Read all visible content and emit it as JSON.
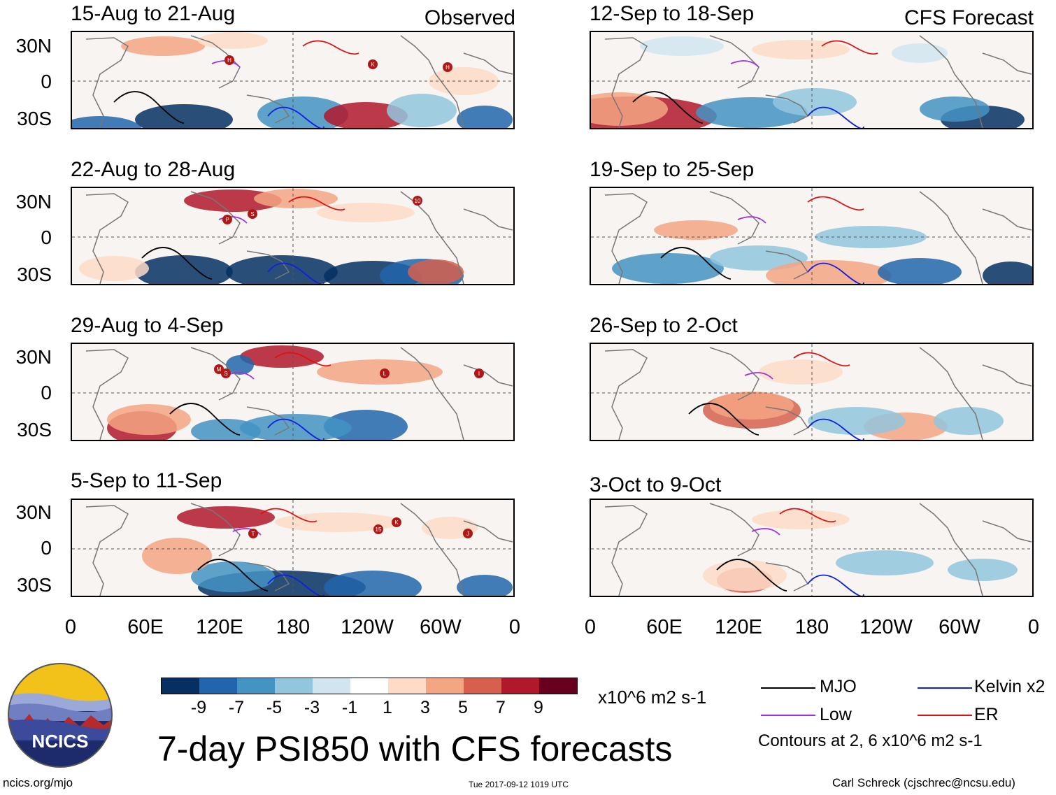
{
  "header": {
    "observed_label": "Observed",
    "forecast_label": "CFS Forecast"
  },
  "panels": {
    "observed": [
      {
        "title": "15-Aug to 21-Aug"
      },
      {
        "title": "22-Aug to 28-Aug"
      },
      {
        "title": "29-Aug to 4-Sep"
      },
      {
        "title": "5-Sep to 11-Sep"
      }
    ],
    "forecast": [
      {
        "title": "12-Sep to 18-Sep"
      },
      {
        "title": "19-Sep to 25-Sep"
      },
      {
        "title": "26-Sep to 2-Oct"
      },
      {
        "title": "3-Oct to 9-Oct"
      }
    ]
  },
  "axes": {
    "lat_labels": [
      "30N",
      "0",
      "30S"
    ],
    "lon_labels": [
      "0",
      "60E",
      "120E",
      "180",
      "120W",
      "60W",
      "0"
    ]
  },
  "colorbar": {
    "colors": [
      "#053061",
      "#2166ac",
      "#4393c3",
      "#92c5de",
      "#d1e5f0",
      "#ffffff",
      "#fddbc7",
      "#f4a582",
      "#d6604d",
      "#b2182b",
      "#67001f"
    ],
    "tick_labels": [
      "-9",
      "-7",
      "-5",
      "-3",
      "-1",
      "1",
      "3",
      "5",
      "7",
      "9"
    ],
    "units": "x10^6 m2 s-1"
  },
  "legend": {
    "items": [
      {
        "label": "MJO",
        "color": "#000000"
      },
      {
        "label": "Kelvin x2",
        "color": "#1020e0"
      },
      {
        "label": "Low",
        "color": "#a030e0"
      },
      {
        "label": "ER",
        "color": "#e01010"
      }
    ],
    "contour_note": "Contours at 2, 6 x10^6 m2 s-1"
  },
  "title": "7-day PSI850 with CFS forecasts",
  "logo_text": "NCICS",
  "footer": {
    "url": "ncics.org/mjo",
    "timestamp": "Tue 2017-09-12 1019 UTC",
    "author": "Carl Schreck (cjschrec@ncsu.edu)"
  },
  "storm_markers": {
    "panel_1": [
      "H",
      "K",
      "H"
    ],
    "panel_2": [
      "10",
      "P",
      "S"
    ],
    "panel_3": [
      "M",
      "S",
      "L",
      "I"
    ],
    "panel_4": [
      "T",
      "15",
      "K",
      "J"
    ]
  }
}
